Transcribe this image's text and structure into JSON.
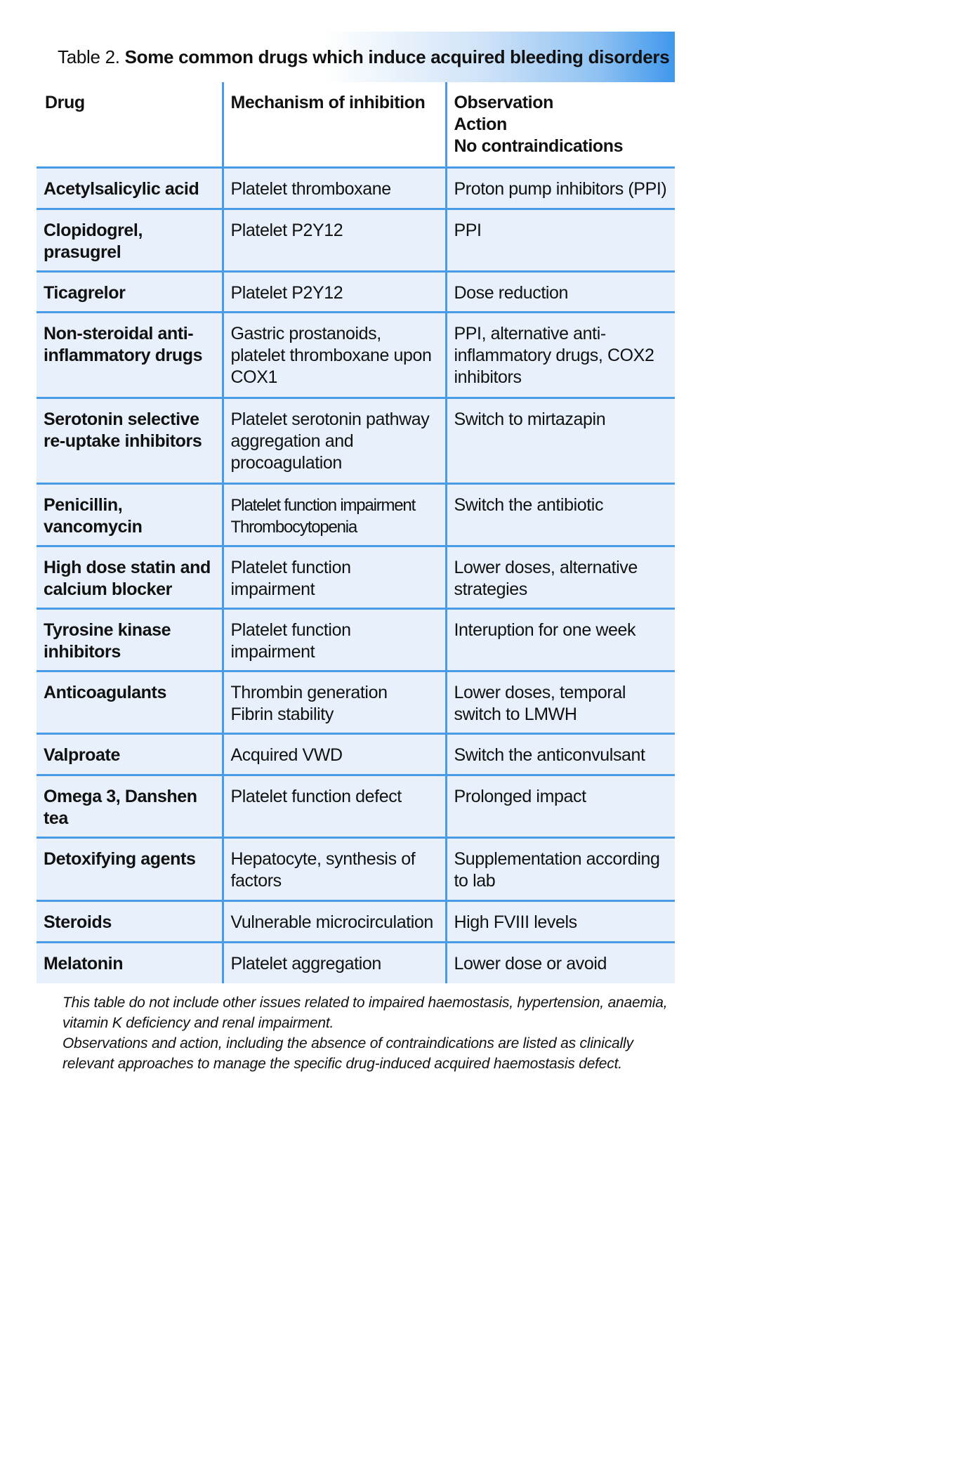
{
  "title": {
    "prefix": "Table 2.",
    "text": "Some common drugs which induce acquired bleeding disorders"
  },
  "colors": {
    "accent": "#4a9be6",
    "row_background": "#e8f1fb",
    "title_gradient_end": "#3f97ec"
  },
  "table": {
    "headers": {
      "drug": "Drug",
      "mechanism": "Mechanism of inhibition",
      "observation_lines": [
        "Observation",
        "Action",
        "No contraindications"
      ]
    },
    "rows": [
      {
        "drug": "Acetylsalicylic acid",
        "mechanism": "Platelet thromboxane",
        "observation": "Proton pump inhibitors (PPI)"
      },
      {
        "drug": "Clopidogrel, prasugrel",
        "mechanism": "Platelet P2Y12",
        "observation": "PPI"
      },
      {
        "drug": "Ticagrelor",
        "mechanism": "Platelet P2Y12",
        "observation": "Dose reduction"
      },
      {
        "drug": "Non-steroidal anti-inflammatory drugs",
        "mechanism": "Gastric prostanoids, platelet thromboxane upon COX1",
        "observation": "PPI, alternative anti-inflammatory drugs, COX2 inhibitors"
      },
      {
        "drug": "Serotonin selective re-uptake inhibitors",
        "mechanism": "Platelet serotonin pathway aggregation and procoagulation",
        "observation": "Switch to mirtazapin"
      },
      {
        "drug": "Penicillin, vancomycin",
        "mechanism_lines": [
          "Platelet function impairment",
          "Thrombocytopenia"
        ],
        "observation": "Switch the antibiotic"
      },
      {
        "drug": "High dose statin and calcium blocker",
        "mechanism": "Platelet function impairment",
        "observation": "Lower doses, alternative strategies"
      },
      {
        "drug": "Tyrosine kinase inhibitors",
        "mechanism": "Platelet function impairment",
        "observation": "Interuption for one week"
      },
      {
        "drug": "Anticoagulants",
        "mechanism_lines": [
          "Thrombin generation",
          "Fibrin stability"
        ],
        "observation": "Lower doses, temporal switch to LMWH"
      },
      {
        "drug": "Valproate",
        "mechanism": "Acquired VWD",
        "observation": "Switch the anticonvulsant"
      },
      {
        "drug": "Omega 3, Danshen tea",
        "mechanism": "Platelet function defect",
        "observation": "Prolonged impact"
      },
      {
        "drug": "Detoxifying agents",
        "mechanism": "Hepatocyte, synthesis of factors",
        "observation": "Supplementation according to lab"
      },
      {
        "drug": "Steroids",
        "mechanism": "Vulnerable microcirculation",
        "observation": "High FVIII levels"
      },
      {
        "drug": "Melatonin",
        "mechanism": "Platelet aggregation",
        "observation": "Lower dose or avoid"
      }
    ]
  },
  "notes": [
    "This table do not include other issues related to impaired haemostasis, hypertension, anaemia, vitamin K deficiency and renal impairment.",
    "Observations and action, including the absence of contraindications are listed as clinically relevant approaches to manage the specific drug-induced acquired haemostasis defect."
  ]
}
